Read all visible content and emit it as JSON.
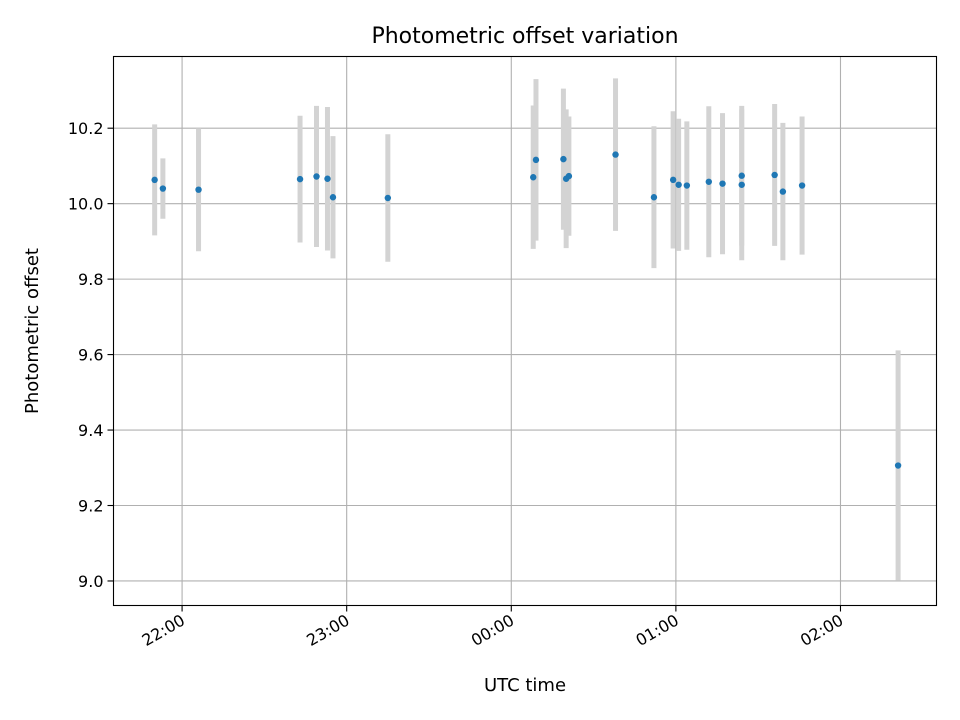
{
  "chart_data": {
    "type": "scatter",
    "title": "Photometric offset variation",
    "xlabel": "UTC time",
    "ylabel": "Photometric offset",
    "xlim": [
      "21:35",
      "02:35"
    ],
    "ylim": [
      8.935,
      10.39
    ],
    "grid": true,
    "error_bar_color": "#d3d3d3",
    "point_color": "#1f77b4",
    "x_ticks": [
      {
        "time": "22:00",
        "label": "22:00"
      },
      {
        "time": "23:00",
        "label": "23:00"
      },
      {
        "time": "00:00",
        "label": "00:00"
      },
      {
        "time": "01:00",
        "label": "01:00"
      },
      {
        "time": "02:00",
        "label": "02:00"
      }
    ],
    "y_ticks": [
      {
        "value": 9.0,
        "label": "9.0"
      },
      {
        "value": 9.2,
        "label": "9.2"
      },
      {
        "value": 9.4,
        "label": "9.4"
      },
      {
        "value": 9.6,
        "label": "9.6"
      },
      {
        "value": 9.8,
        "label": "9.8"
      },
      {
        "value": 10.0,
        "label": "10.0"
      },
      {
        "value": 10.2,
        "label": "10.2"
      }
    ],
    "points": [
      {
        "time": "21:50",
        "y": 10.063,
        "err": 0.147
      },
      {
        "time": "21:53",
        "y": 10.04,
        "err": 0.08
      },
      {
        "time": "22:06",
        "y": 10.037,
        "err": 0.163
      },
      {
        "time": "22:43",
        "y": 10.065,
        "err": 0.168
      },
      {
        "time": "22:49",
        "y": 10.072,
        "err": 0.187
      },
      {
        "time": "22:53",
        "y": 10.066,
        "err": 0.19
      },
      {
        "time": "22:55",
        "y": 10.017,
        "err": 0.162
      },
      {
        "time": "23:15",
        "y": 10.015,
        "err": 0.169
      },
      {
        "time": "00:08",
        "y": 10.07,
        "err": 0.19
      },
      {
        "time": "00:09",
        "y": 10.116,
        "err": 0.214
      },
      {
        "time": "00:19",
        "y": 10.118,
        "err": 0.187
      },
      {
        "time": "00:20",
        "y": 10.066,
        "err": 0.184
      },
      {
        "time": "00:21",
        "y": 10.073,
        "err": 0.158
      },
      {
        "time": "00:38",
        "y": 10.13,
        "err": 0.202
      },
      {
        "time": "00:52",
        "y": 10.017,
        "err": 0.188
      },
      {
        "time": "00:59",
        "y": 10.063,
        "err": 0.182
      },
      {
        "time": "01:01",
        "y": 10.05,
        "err": 0.175
      },
      {
        "time": "01:04",
        "y": 10.048,
        "err": 0.17
      },
      {
        "time": "01:12",
        "y": 10.058,
        "err": 0.2
      },
      {
        "time": "01:17",
        "y": 10.053,
        "err": 0.187
      },
      {
        "time": "01:24",
        "y": 10.074,
        "err": 0.185
      },
      {
        "time": "01:24",
        "y": 10.05,
        "err": 0.2
      },
      {
        "time": "01:36",
        "y": 10.076,
        "err": 0.188
      },
      {
        "time": "01:39",
        "y": 10.032,
        "err": 0.182
      },
      {
        "time": "01:46",
        "y": 10.048,
        "err": 0.183
      },
      {
        "time": "02:21",
        "y": 9.306,
        "err": 0.305
      }
    ]
  }
}
